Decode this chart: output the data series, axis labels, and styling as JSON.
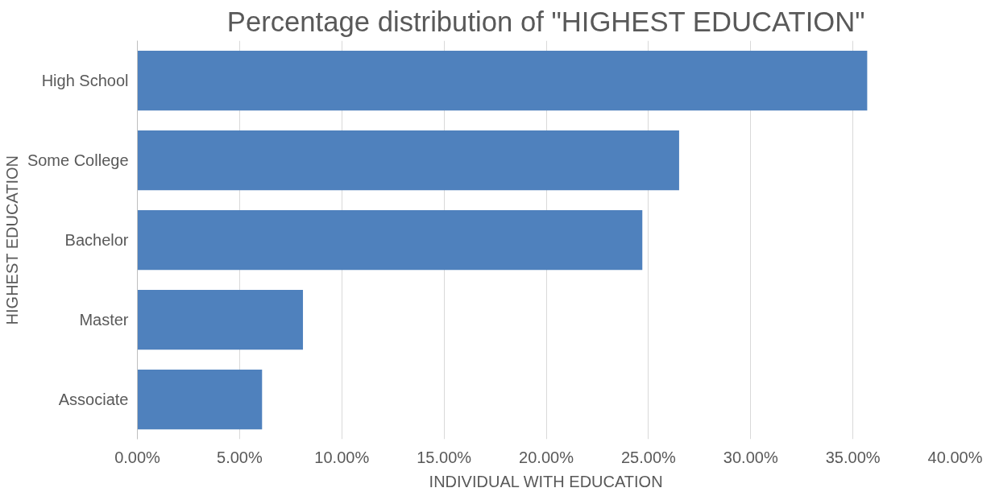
{
  "chart_data": {
    "type": "bar",
    "orientation": "horizontal",
    "title": "Percentage distribution of \"HIGHEST EDUCATION\"",
    "xlabel": "INDIVIDUAL WITH EDUCATION",
    "ylabel": "HIGHEST EDUCATION",
    "categories": [
      "High School",
      "Some College",
      "Bachelor",
      "Master",
      "Associate"
    ],
    "values": [
      35.7,
      26.5,
      24.7,
      8.1,
      6.1
    ],
    "color": "#4f81bd",
    "xlim": [
      0,
      40
    ],
    "xticks": [
      {
        "value": 0,
        "label": "0.00%"
      },
      {
        "value": 5,
        "label": "5.00%"
      },
      {
        "value": 10,
        "label": "10.00%"
      },
      {
        "value": 15,
        "label": "15.00%"
      },
      {
        "value": 20,
        "label": "20.00%"
      },
      {
        "value": 25,
        "label": "25.00%"
      },
      {
        "value": 30,
        "label": "30.00%"
      },
      {
        "value": 35,
        "label": "35.00%"
      },
      {
        "value": 40,
        "label": "40.00%"
      }
    ],
    "grid": "x",
    "legend": false
  }
}
